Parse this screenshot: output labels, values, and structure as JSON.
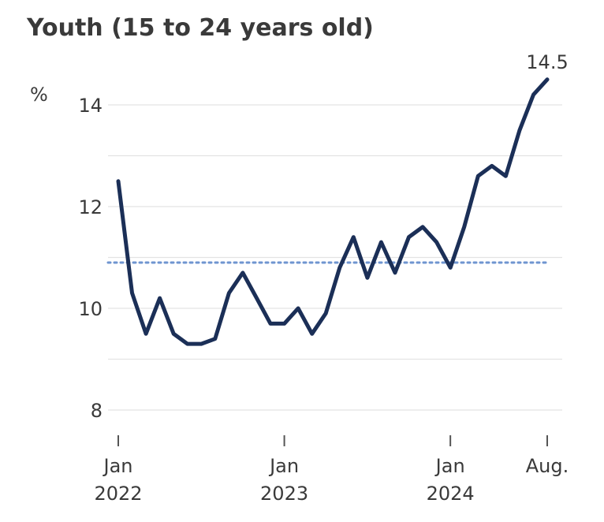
{
  "chart_data": {
    "type": "line",
    "title": "Youth (15 to 24 years old)",
    "ylabel": "%",
    "xlabel": "",
    "ylim": [
      7.5,
      15.3
    ],
    "y_ticks": [
      8,
      10,
      12,
      14
    ],
    "x_ticks": [
      {
        "x": "2022-01",
        "label": [
          "Jan",
          "2022"
        ]
      },
      {
        "x": "2023-01",
        "label": [
          "Jan",
          "2023"
        ]
      },
      {
        "x": "2024-01",
        "label": [
          "Jan",
          "2024"
        ]
      },
      {
        "x": "2024-08",
        "label": [
          "Aug.",
          ""
        ]
      }
    ],
    "grid": true,
    "series": [
      {
        "color": "#1b2f57",
        "x": [
          "2022-01",
          "2022-02",
          "2022-03",
          "2022-04",
          "2022-05",
          "2022-06",
          "2022-07",
          "2022-08",
          "2022-09",
          "2022-10",
          "2022-11",
          "2022-12",
          "2023-01",
          "2023-02",
          "2023-03",
          "2023-04",
          "2023-05",
          "2023-06",
          "2023-07",
          "2023-08",
          "2023-09",
          "2023-10",
          "2023-11",
          "2023-12",
          "2024-01",
          "2024-02",
          "2024-03",
          "2024-04",
          "2024-05",
          "2024-06",
          "2024-07",
          "2024-08"
        ],
        "values": [
          12.5,
          10.3,
          9.5,
          10.2,
          9.5,
          9.3,
          9.3,
          9.4,
          10.3,
          10.7,
          10.2,
          9.7,
          9.7,
          10.0,
          9.5,
          9.9,
          10.8,
          11.4,
          10.6,
          11.3,
          10.7,
          11.4,
          11.6,
          11.3,
          10.8,
          11.6,
          12.6,
          12.8,
          12.6,
          13.5,
          14.2,
          14.5
        ]
      }
    ],
    "reference_line": {
      "value": 10.9,
      "color": "#6f95d0",
      "style": "dotted"
    },
    "annotations": [
      {
        "x": "2024-08",
        "text": "14.5"
      }
    ]
  }
}
